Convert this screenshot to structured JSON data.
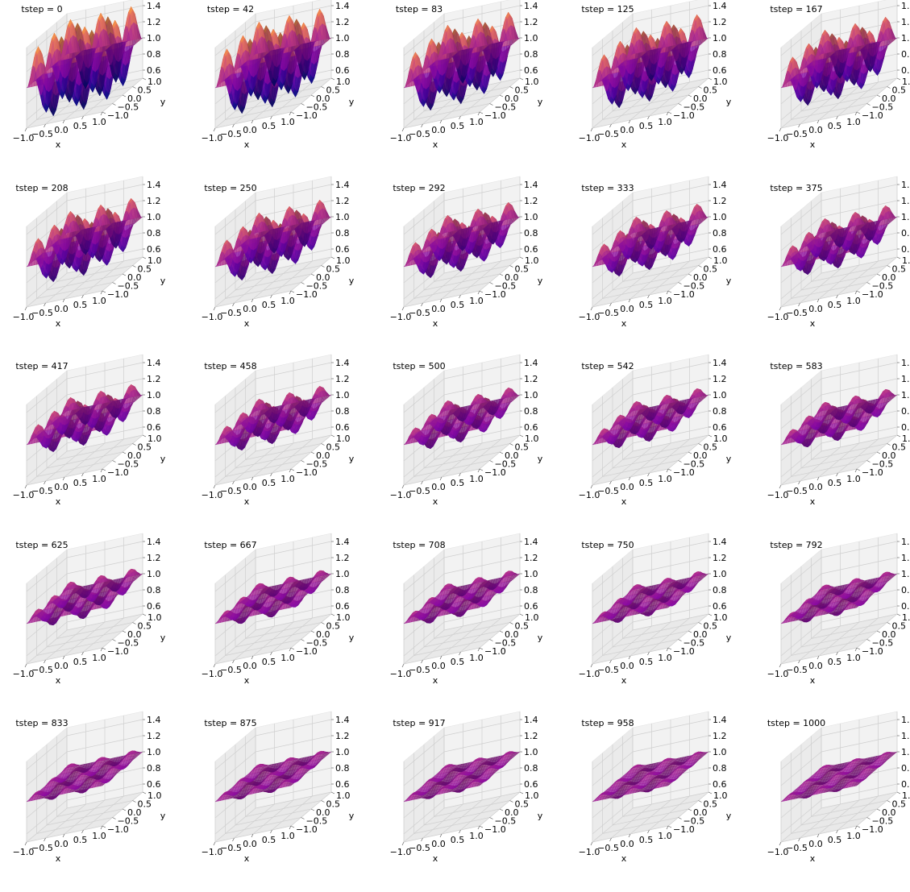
{
  "chart_data": {
    "type": "surface",
    "layout": "5x5 grid of 3D surface plots",
    "colormap": "plasma-like (purple to orange)",
    "grid": true,
    "xlabel": "x",
    "ylabel": "y",
    "xticks": [
      "−1.0",
      "−0.5",
      "0.0",
      "0.5",
      "1.0"
    ],
    "yticks": [
      "−1.0",
      "−0.5",
      "0.0",
      "0.5",
      "1.0"
    ],
    "zticks": [
      "0.6",
      "0.8",
      "1.0",
      "1.2",
      "1.4"
    ],
    "xlim": [
      -1,
      1
    ],
    "ylim": [
      -1,
      1
    ],
    "zlim": [
      0.5,
      1.5
    ],
    "surface": "z = 1 + A(t)·cos(πkx)·cos(πky) (approximate)",
    "panels": [
      {
        "title": "tstep = 0",
        "tstep": 0,
        "amplitude": 0.45
      },
      {
        "title": "tstep = 42",
        "tstep": 42,
        "amplitude": 0.42
      },
      {
        "title": "tstep = 83",
        "tstep": 83,
        "amplitude": 0.38
      },
      {
        "title": "tstep = 125",
        "tstep": 125,
        "amplitude": 0.35
      },
      {
        "title": "tstep = 167",
        "tstep": 167,
        "amplitude": 0.32
      },
      {
        "title": "tstep = 208",
        "tstep": 208,
        "amplitude": 0.29
      },
      {
        "title": "tstep = 250",
        "tstep": 250,
        "amplitude": 0.27
      },
      {
        "title": "tstep = 292",
        "tstep": 292,
        "amplitude": 0.24
      },
      {
        "title": "tstep = 333",
        "tstep": 333,
        "amplitude": 0.22
      },
      {
        "title": "tstep = 375",
        "tstep": 375,
        "amplitude": 0.2
      },
      {
        "title": "tstep = 417",
        "tstep": 417,
        "amplitude": 0.19
      },
      {
        "title": "tstep = 458",
        "tstep": 458,
        "amplitude": 0.17
      },
      {
        "title": "tstep = 500",
        "tstep": 500,
        "amplitude": 0.15
      },
      {
        "title": "tstep = 542",
        "tstep": 542,
        "amplitude": 0.14
      },
      {
        "title": "tstep = 583",
        "tstep": 583,
        "amplitude": 0.13
      },
      {
        "title": "tstep = 625",
        "tstep": 625,
        "amplitude": 0.12
      },
      {
        "title": "tstep = 667",
        "tstep": 667,
        "amplitude": 0.1
      },
      {
        "title": "tstep = 708",
        "tstep": 708,
        "amplitude": 0.095
      },
      {
        "title": "tstep = 750",
        "tstep": 750,
        "amplitude": 0.085
      },
      {
        "title": "tstep = 792",
        "tstep": 792,
        "amplitude": 0.08
      },
      {
        "title": "tstep = 833",
        "tstep": 833,
        "amplitude": 0.07
      },
      {
        "title": "tstep = 875",
        "tstep": 875,
        "amplitude": 0.065
      },
      {
        "title": "tstep = 917",
        "tstep": 917,
        "amplitude": 0.06
      },
      {
        "title": "tstep = 958",
        "tstep": 958,
        "amplitude": 0.055
      },
      {
        "title": "tstep = 1000",
        "tstep": 1000,
        "amplitude": 0.05
      }
    ]
  }
}
